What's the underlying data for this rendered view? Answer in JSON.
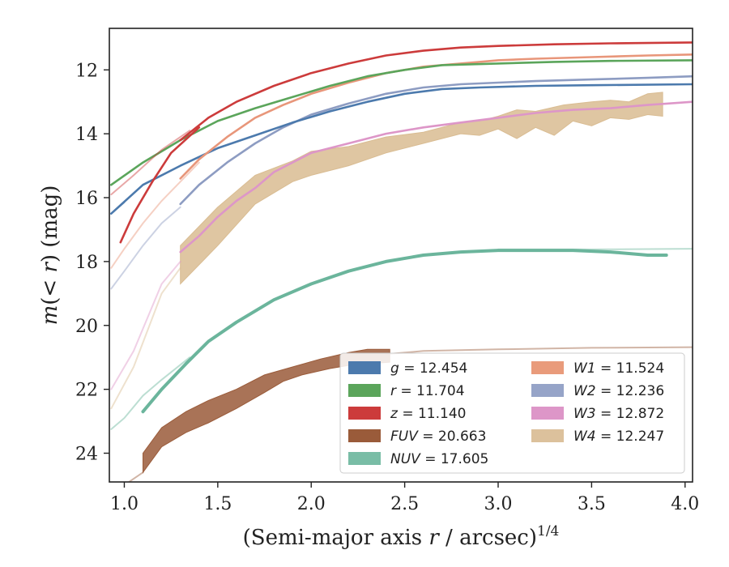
{
  "chart_data": {
    "type": "line",
    "xlabel": "(Semi-major axis r / arcsec)",
    "xlabel_parts": {
      "pre": "(Semi-major axis ",
      "var": "r",
      "post": " / arcsec)",
      "sup": "1/4"
    },
    "ylabel": "m(< r) (mag)",
    "ylabel_parts": {
      "m": "m",
      "open": "(",
      "lt": "< ",
      "r": "r",
      "close": ")",
      "unit": " (mag)"
    },
    "xlim": [
      0.92,
      4.04
    ],
    "ylim": [
      24.9,
      10.7
    ],
    "y_inverted": true,
    "x_ticks": [
      "1.0",
      "1.5",
      "2.0",
      "2.5",
      "3.0",
      "3.5",
      "4.0"
    ],
    "y_ticks": [
      "12",
      "14",
      "16",
      "18",
      "20",
      "22",
      "24"
    ],
    "grid": false,
    "legend_placement": "lower-right",
    "legend": [
      {
        "label": "g = 12.454",
        "color": "#4c7aad"
      },
      {
        "label": "r = 11.704",
        "color": "#5ba55b"
      },
      {
        "label": "z = 11.140",
        "color": "#cc3b3b"
      },
      {
        "label": "FUV = 20.663",
        "color": "#9a5b3a"
      },
      {
        "label": "NUV = 17.605",
        "color": "#79bda6"
      },
      {
        "label": "W1 = 11.524",
        "color": "#e99b7b"
      },
      {
        "label": "W2 = 12.236",
        "color": "#96a4c8"
      },
      {
        "label": "W3 = 12.872",
        "color": "#dd96c8"
      },
      {
        "label": "W4 = 12.247",
        "color": "#dcc19c"
      }
    ],
    "series": [
      {
        "key": "W4",
        "color": "#d9bc92",
        "type": "band",
        "faint": [
          [
            0.93,
            22.6
          ],
          [
            1.05,
            21.3
          ],
          [
            1.2,
            19.0
          ],
          [
            1.3,
            18.2
          ]
        ],
        "upper": [
          [
            1.3,
            17.5
          ],
          [
            1.5,
            16.3
          ],
          [
            1.7,
            15.3
          ],
          [
            1.9,
            14.85
          ],
          [
            2.0,
            14.55
          ],
          [
            2.2,
            14.4
          ],
          [
            2.4,
            14.1
          ],
          [
            2.6,
            13.95
          ],
          [
            2.8,
            13.65
          ],
          [
            2.9,
            13.6
          ],
          [
            3.0,
            13.45
          ],
          [
            3.1,
            13.25
          ],
          [
            3.2,
            13.3
          ],
          [
            3.35,
            13.1
          ],
          [
            3.5,
            13.0
          ],
          [
            3.6,
            12.95
          ],
          [
            3.7,
            13.0
          ],
          [
            3.8,
            12.75
          ],
          [
            3.88,
            12.7
          ]
        ],
        "lower": [
          [
            1.3,
            18.7
          ],
          [
            1.5,
            17.5
          ],
          [
            1.7,
            16.2
          ],
          [
            1.9,
            15.5
          ],
          [
            2.0,
            15.3
          ],
          [
            2.2,
            15.0
          ],
          [
            2.4,
            14.6
          ],
          [
            2.6,
            14.3
          ],
          [
            2.8,
            14.0
          ],
          [
            2.9,
            14.05
          ],
          [
            3.0,
            13.85
          ],
          [
            3.1,
            14.15
          ],
          [
            3.2,
            13.8
          ],
          [
            3.3,
            14.05
          ],
          [
            3.4,
            13.6
          ],
          [
            3.5,
            13.75
          ],
          [
            3.6,
            13.5
          ],
          [
            3.7,
            13.55
          ],
          [
            3.8,
            13.4
          ],
          [
            3.88,
            13.45
          ]
        ]
      },
      {
        "key": "W3",
        "color": "#dd96c8",
        "type": "line",
        "faint": [
          [
            0.93,
            22.0
          ],
          [
            1.05,
            20.8
          ],
          [
            1.2,
            18.7
          ],
          [
            1.3,
            18.0
          ]
        ],
        "main": [
          [
            1.3,
            17.7
          ],
          [
            1.4,
            17.2
          ],
          [
            1.5,
            16.6
          ],
          [
            1.6,
            16.1
          ],
          [
            1.7,
            15.7
          ],
          [
            1.8,
            15.2
          ],
          [
            1.9,
            14.9
          ],
          [
            2.0,
            14.6
          ],
          [
            2.2,
            14.3
          ],
          [
            2.4,
            14.0
          ],
          [
            2.6,
            13.8
          ],
          [
            2.8,
            13.65
          ],
          [
            3.0,
            13.5
          ],
          [
            3.2,
            13.35
          ],
          [
            3.4,
            13.25
          ],
          [
            3.6,
            13.2
          ],
          [
            3.8,
            13.1
          ],
          [
            4.04,
            13.0
          ]
        ]
      },
      {
        "key": "FUV",
        "color": "#9a5b3a",
        "type": "band",
        "faint": [
          [
            1.1,
            24.6
          ],
          [
            1.0,
            25.0
          ]
        ],
        "faint_right": [
          [
            2.4,
            20.9
          ],
          [
            2.6,
            20.8
          ],
          [
            3.0,
            20.75
          ],
          [
            3.5,
            20.7
          ],
          [
            4.04,
            20.68
          ]
        ],
        "upper": [
          [
            1.1,
            24.0
          ],
          [
            1.2,
            23.2
          ],
          [
            1.33,
            22.7
          ],
          [
            1.45,
            22.35
          ],
          [
            1.6,
            22.0
          ],
          [
            1.75,
            21.55
          ],
          [
            1.9,
            21.3
          ],
          [
            2.05,
            21.05
          ],
          [
            2.2,
            20.85
          ],
          [
            2.3,
            20.75
          ],
          [
            2.42,
            20.75
          ]
        ],
        "lower": [
          [
            1.1,
            24.6
          ],
          [
            1.2,
            23.8
          ],
          [
            1.33,
            23.35
          ],
          [
            1.45,
            23.05
          ],
          [
            1.6,
            22.6
          ],
          [
            1.75,
            22.1
          ],
          [
            1.85,
            21.75
          ],
          [
            1.95,
            21.55
          ],
          [
            2.1,
            21.35
          ],
          [
            2.2,
            21.25
          ],
          [
            2.3,
            21.2
          ],
          [
            2.42,
            21.15
          ]
        ]
      },
      {
        "key": "NUV",
        "color": "#6bb59c",
        "type": "line",
        "width": 4,
        "faint": [
          [
            0.93,
            23.25
          ],
          [
            1.0,
            22.9
          ],
          [
            1.1,
            22.2
          ],
          [
            1.2,
            21.7
          ],
          [
            1.35,
            21.0
          ]
        ],
        "faint_right": [
          [
            3.0,
            17.62
          ],
          [
            3.5,
            17.62
          ],
          [
            4.04,
            17.6
          ]
        ],
        "main": [
          [
            1.1,
            22.7
          ],
          [
            1.2,
            22.0
          ],
          [
            1.33,
            21.2
          ],
          [
            1.45,
            20.5
          ],
          [
            1.6,
            19.9
          ],
          [
            1.8,
            19.2
          ],
          [
            2.0,
            18.7
          ],
          [
            2.2,
            18.3
          ],
          [
            2.4,
            18.0
          ],
          [
            2.6,
            17.8
          ],
          [
            2.8,
            17.7
          ],
          [
            3.0,
            17.65
          ],
          [
            3.2,
            17.65
          ],
          [
            3.4,
            17.65
          ],
          [
            3.6,
            17.7
          ],
          [
            3.7,
            17.75
          ],
          [
            3.8,
            17.8
          ],
          [
            3.9,
            17.8
          ]
        ]
      },
      {
        "key": "W2",
        "color": "#8d9cc2",
        "type": "line",
        "faint": [
          [
            0.93,
            18.85
          ],
          [
            1.0,
            18.3
          ],
          [
            1.1,
            17.5
          ],
          [
            1.2,
            16.8
          ],
          [
            1.3,
            16.3
          ]
        ],
        "main": [
          [
            1.3,
            16.2
          ],
          [
            1.4,
            15.6
          ],
          [
            1.55,
            14.9
          ],
          [
            1.7,
            14.3
          ],
          [
            1.85,
            13.8
          ],
          [
            2.0,
            13.4
          ],
          [
            2.2,
            13.05
          ],
          [
            2.4,
            12.75
          ],
          [
            2.6,
            12.55
          ],
          [
            2.8,
            12.45
          ],
          [
            3.0,
            12.4
          ],
          [
            3.2,
            12.35
          ],
          [
            3.5,
            12.3
          ],
          [
            3.8,
            12.25
          ],
          [
            4.04,
            12.2
          ]
        ]
      },
      {
        "key": "g",
        "color": "#4c7aad",
        "type": "line",
        "faint": [
          [
            0.93,
            16.5
          ],
          [
            1.0,
            16.15
          ]
        ],
        "main": [
          [
            0.93,
            16.5
          ],
          [
            1.1,
            15.6
          ],
          [
            1.3,
            15.0
          ],
          [
            1.5,
            14.45
          ],
          [
            1.7,
            14.05
          ],
          [
            1.9,
            13.65
          ],
          [
            2.1,
            13.3
          ],
          [
            2.3,
            13.0
          ],
          [
            2.5,
            12.75
          ],
          [
            2.7,
            12.6
          ],
          [
            2.9,
            12.55
          ],
          [
            3.2,
            12.5
          ],
          [
            3.5,
            12.48
          ],
          [
            4.04,
            12.45
          ]
        ]
      },
      {
        "key": "W1",
        "color": "#e8967a",
        "type": "line",
        "faint": [
          [
            0.93,
            18.2
          ],
          [
            1.0,
            17.6
          ],
          [
            1.1,
            16.8
          ],
          [
            1.2,
            16.1
          ],
          [
            1.3,
            15.5
          ],
          [
            1.4,
            14.9
          ]
        ],
        "main": [
          [
            1.3,
            15.4
          ],
          [
            1.4,
            14.8
          ],
          [
            1.55,
            14.1
          ],
          [
            1.7,
            13.5
          ],
          [
            1.85,
            13.1
          ],
          [
            2.0,
            12.75
          ],
          [
            2.2,
            12.4
          ],
          [
            2.4,
            12.1
          ],
          [
            2.6,
            11.9
          ],
          [
            2.8,
            11.8
          ],
          [
            3.0,
            11.7
          ],
          [
            3.2,
            11.65
          ],
          [
            3.5,
            11.6
          ],
          [
            3.8,
            11.55
          ],
          [
            4.04,
            11.52
          ]
        ]
      },
      {
        "key": "r",
        "color": "#5ba55b",
        "type": "line",
        "faint": [
          [
            0.93,
            15.6
          ],
          [
            1.0,
            15.3
          ]
        ],
        "main": [
          [
            0.93,
            15.6
          ],
          [
            1.1,
            14.9
          ],
          [
            1.3,
            14.2
          ],
          [
            1.5,
            13.6
          ],
          [
            1.7,
            13.2
          ],
          [
            1.9,
            12.85
          ],
          [
            2.1,
            12.5
          ],
          [
            2.3,
            12.2
          ],
          [
            2.5,
            12.0
          ],
          [
            2.7,
            11.85
          ],
          [
            3.0,
            11.8
          ],
          [
            3.3,
            11.75
          ],
          [
            3.6,
            11.72
          ],
          [
            4.04,
            11.7
          ]
        ]
      },
      {
        "key": "z",
        "color": "#cc3b3b",
        "type": "line",
        "faint": [
          [
            0.93,
            15.9
          ],
          [
            1.05,
            15.3
          ],
          [
            1.2,
            14.5
          ],
          [
            1.35,
            13.9
          ]
        ],
        "main_extra": [
          [
            0.98,
            17.4
          ],
          [
            1.05,
            16.5
          ],
          [
            1.15,
            15.5
          ],
          [
            1.25,
            14.6
          ],
          [
            1.4,
            13.8
          ]
        ],
        "main": [
          [
            1.3,
            14.2
          ],
          [
            1.45,
            13.5
          ],
          [
            1.6,
            13.0
          ],
          [
            1.8,
            12.5
          ],
          [
            2.0,
            12.1
          ],
          [
            2.2,
            11.8
          ],
          [
            2.4,
            11.55
          ],
          [
            2.6,
            11.4
          ],
          [
            2.8,
            11.3
          ],
          [
            3.0,
            11.25
          ],
          [
            3.3,
            11.2
          ],
          [
            3.6,
            11.17
          ],
          [
            4.04,
            11.14
          ]
        ]
      }
    ]
  }
}
